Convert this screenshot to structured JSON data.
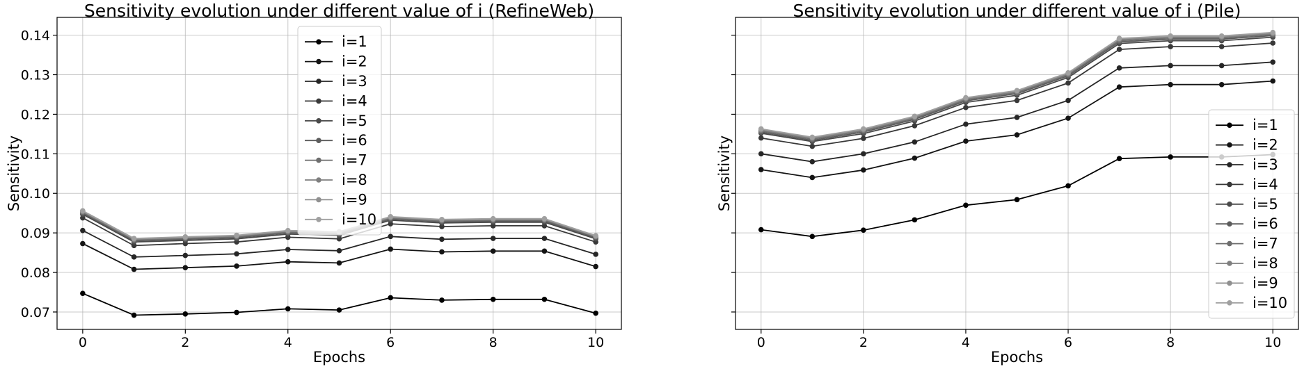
{
  "chart_data": [
    {
      "type": "line",
      "title": "Sensitivity evolution under different value of i (RefineWeb)",
      "xlabel": "Epochs",
      "ylabel": "Sensitivity",
      "x": [
        0,
        1,
        2,
        3,
        4,
        5,
        6,
        7,
        8,
        9,
        10
      ],
      "xticks": [
        "0",
        "2",
        "4",
        "6",
        "8",
        "10"
      ],
      "yticks": [
        "0.07",
        "0.08",
        "0.09",
        "0.10",
        "0.11",
        "0.12",
        "0.13",
        "0.14"
      ],
      "xlim": [
        -0.5,
        10.5
      ],
      "ylim": [
        0.0656,
        0.1445
      ],
      "grid": true,
      "legend_position": "upper-center",
      "series": [
        {
          "name": "i=1",
          "color": "#000000",
          "values": [
            0.0747,
            0.0692,
            0.0695,
            0.0699,
            0.0708,
            0.0705,
            0.0736,
            0.073,
            0.0732,
            0.0732,
            0.0697
          ]
        },
        {
          "name": "i=2",
          "color": "#141414",
          "values": [
            0.0873,
            0.0808,
            0.0812,
            0.0816,
            0.0827,
            0.0824,
            0.0859,
            0.0852,
            0.0854,
            0.0854,
            0.0815
          ]
        },
        {
          "name": "i=3",
          "color": "#262626",
          "values": [
            0.0906,
            0.0839,
            0.0843,
            0.0847,
            0.0858,
            0.0855,
            0.0891,
            0.0884,
            0.0886,
            0.0886,
            0.0846
          ]
        },
        {
          "name": "i=4",
          "color": "#383838",
          "values": [
            0.0938,
            0.0868,
            0.0873,
            0.0877,
            0.0889,
            0.0885,
            0.0923,
            0.0916,
            0.0918,
            0.0918,
            0.0877
          ]
        },
        {
          "name": "i=5",
          "color": "#4a4a4a",
          "values": [
            0.0947,
            0.0877,
            0.0881,
            0.0885,
            0.0897,
            0.0894,
            0.0932,
            0.0925,
            0.0927,
            0.0927,
            0.0885
          ]
        },
        {
          "name": "i=6",
          "color": "#5c5c5c",
          "values": [
            0.095,
            0.088,
            0.0884,
            0.0888,
            0.09,
            0.0897,
            0.0935,
            0.0928,
            0.093,
            0.093,
            0.0888
          ]
        },
        {
          "name": "i=7",
          "color": "#6e6e6e",
          "values": [
            0.0952,
            0.0882,
            0.0886,
            0.089,
            0.0902,
            0.0899,
            0.0937,
            0.093,
            0.0932,
            0.0932,
            0.089
          ]
        },
        {
          "name": "i=8",
          "color": "#7f7f7f",
          "values": [
            0.0954,
            0.0884,
            0.0888,
            0.0892,
            0.0904,
            0.0901,
            0.0939,
            0.0932,
            0.0934,
            0.0934,
            0.0891
          ]
        },
        {
          "name": "i=9",
          "color": "#909090",
          "values": [
            0.0955,
            0.0885,
            0.0889,
            0.0893,
            0.0905,
            0.0902,
            0.094,
            0.0933,
            0.0935,
            0.0935,
            0.0892
          ]
        },
        {
          "name": "i=10",
          "color": "#a0a0a0",
          "values": [
            0.0956,
            0.0886,
            0.089,
            0.0894,
            0.0906,
            0.0903,
            0.0941,
            0.0934,
            0.0936,
            0.0936,
            0.0893
          ]
        }
      ]
    },
    {
      "type": "line",
      "title": "Sensitivity evolution under different value of i (Pile)",
      "xlabel": "Epochs",
      "ylabel": "Sensitivity",
      "x": [
        0,
        1,
        2,
        3,
        4,
        5,
        6,
        7,
        8,
        9,
        10
      ],
      "xticks": [
        "0",
        "2",
        "4",
        "6",
        "8",
        "10"
      ],
      "xlim": [
        -0.5,
        10.5
      ],
      "ylim": [
        0.0656,
        0.1445
      ],
      "grid": true,
      "legend_position": "lower-right",
      "series": [
        {
          "name": "i=1",
          "color": "#000000",
          "values": [
            0.0908,
            0.0891,
            0.0907,
            0.0933,
            0.097,
            0.0984,
            0.1019,
            0.1088,
            0.1092,
            0.1092,
            0.1098
          ]
        },
        {
          "name": "i=2",
          "color": "#141414",
          "values": [
            0.106,
            0.104,
            0.1059,
            0.1089,
            0.1132,
            0.1148,
            0.119,
            0.1269,
            0.1275,
            0.1275,
            0.1284
          ]
        },
        {
          "name": "i=3",
          "color": "#262626",
          "values": [
            0.11,
            0.108,
            0.11,
            0.113,
            0.1175,
            0.1192,
            0.1235,
            0.1317,
            0.1323,
            0.1323,
            0.1332
          ]
        },
        {
          "name": "i=4",
          "color": "#383838",
          "values": [
            0.114,
            0.1119,
            0.1139,
            0.1171,
            0.1217,
            0.1235,
            0.1279,
            0.1364,
            0.1371,
            0.1371,
            0.138
          ]
        },
        {
          "name": "i=5",
          "color": "#4a4a4a",
          "values": [
            0.1152,
            0.1131,
            0.1151,
            0.1183,
            0.123,
            0.1248,
            0.1293,
            0.1379,
            0.1386,
            0.1386,
            0.1395
          ]
        },
        {
          "name": "i=6",
          "color": "#5c5c5c",
          "values": [
            0.1155,
            0.1134,
            0.1155,
            0.1187,
            0.1234,
            0.1252,
            0.1297,
            0.1383,
            0.139,
            0.139,
            0.1399
          ]
        },
        {
          "name": "i=7",
          "color": "#6e6e6e",
          "values": [
            0.1158,
            0.1137,
            0.1158,
            0.119,
            0.1237,
            0.1255,
            0.13,
            0.1386,
            0.1393,
            0.1393,
            0.1402
          ]
        },
        {
          "name": "i=8",
          "color": "#7f7f7f",
          "values": [
            0.116,
            0.1139,
            0.116,
            0.1192,
            0.1239,
            0.1257,
            0.1302,
            0.1389,
            0.1395,
            0.1395,
            0.1404
          ]
        },
        {
          "name": "i=9",
          "color": "#909090",
          "values": [
            0.1162,
            0.1141,
            0.1162,
            0.1194,
            0.1241,
            0.1259,
            0.1304,
            0.1391,
            0.1397,
            0.1397,
            0.1406
          ]
        },
        {
          "name": "i=10",
          "color": "#a0a0a0",
          "values": [
            0.1163,
            0.1142,
            0.1163,
            0.1195,
            0.1242,
            0.126,
            0.1305,
            0.1392,
            0.1398,
            0.1398,
            0.1407
          ]
        }
      ]
    }
  ]
}
